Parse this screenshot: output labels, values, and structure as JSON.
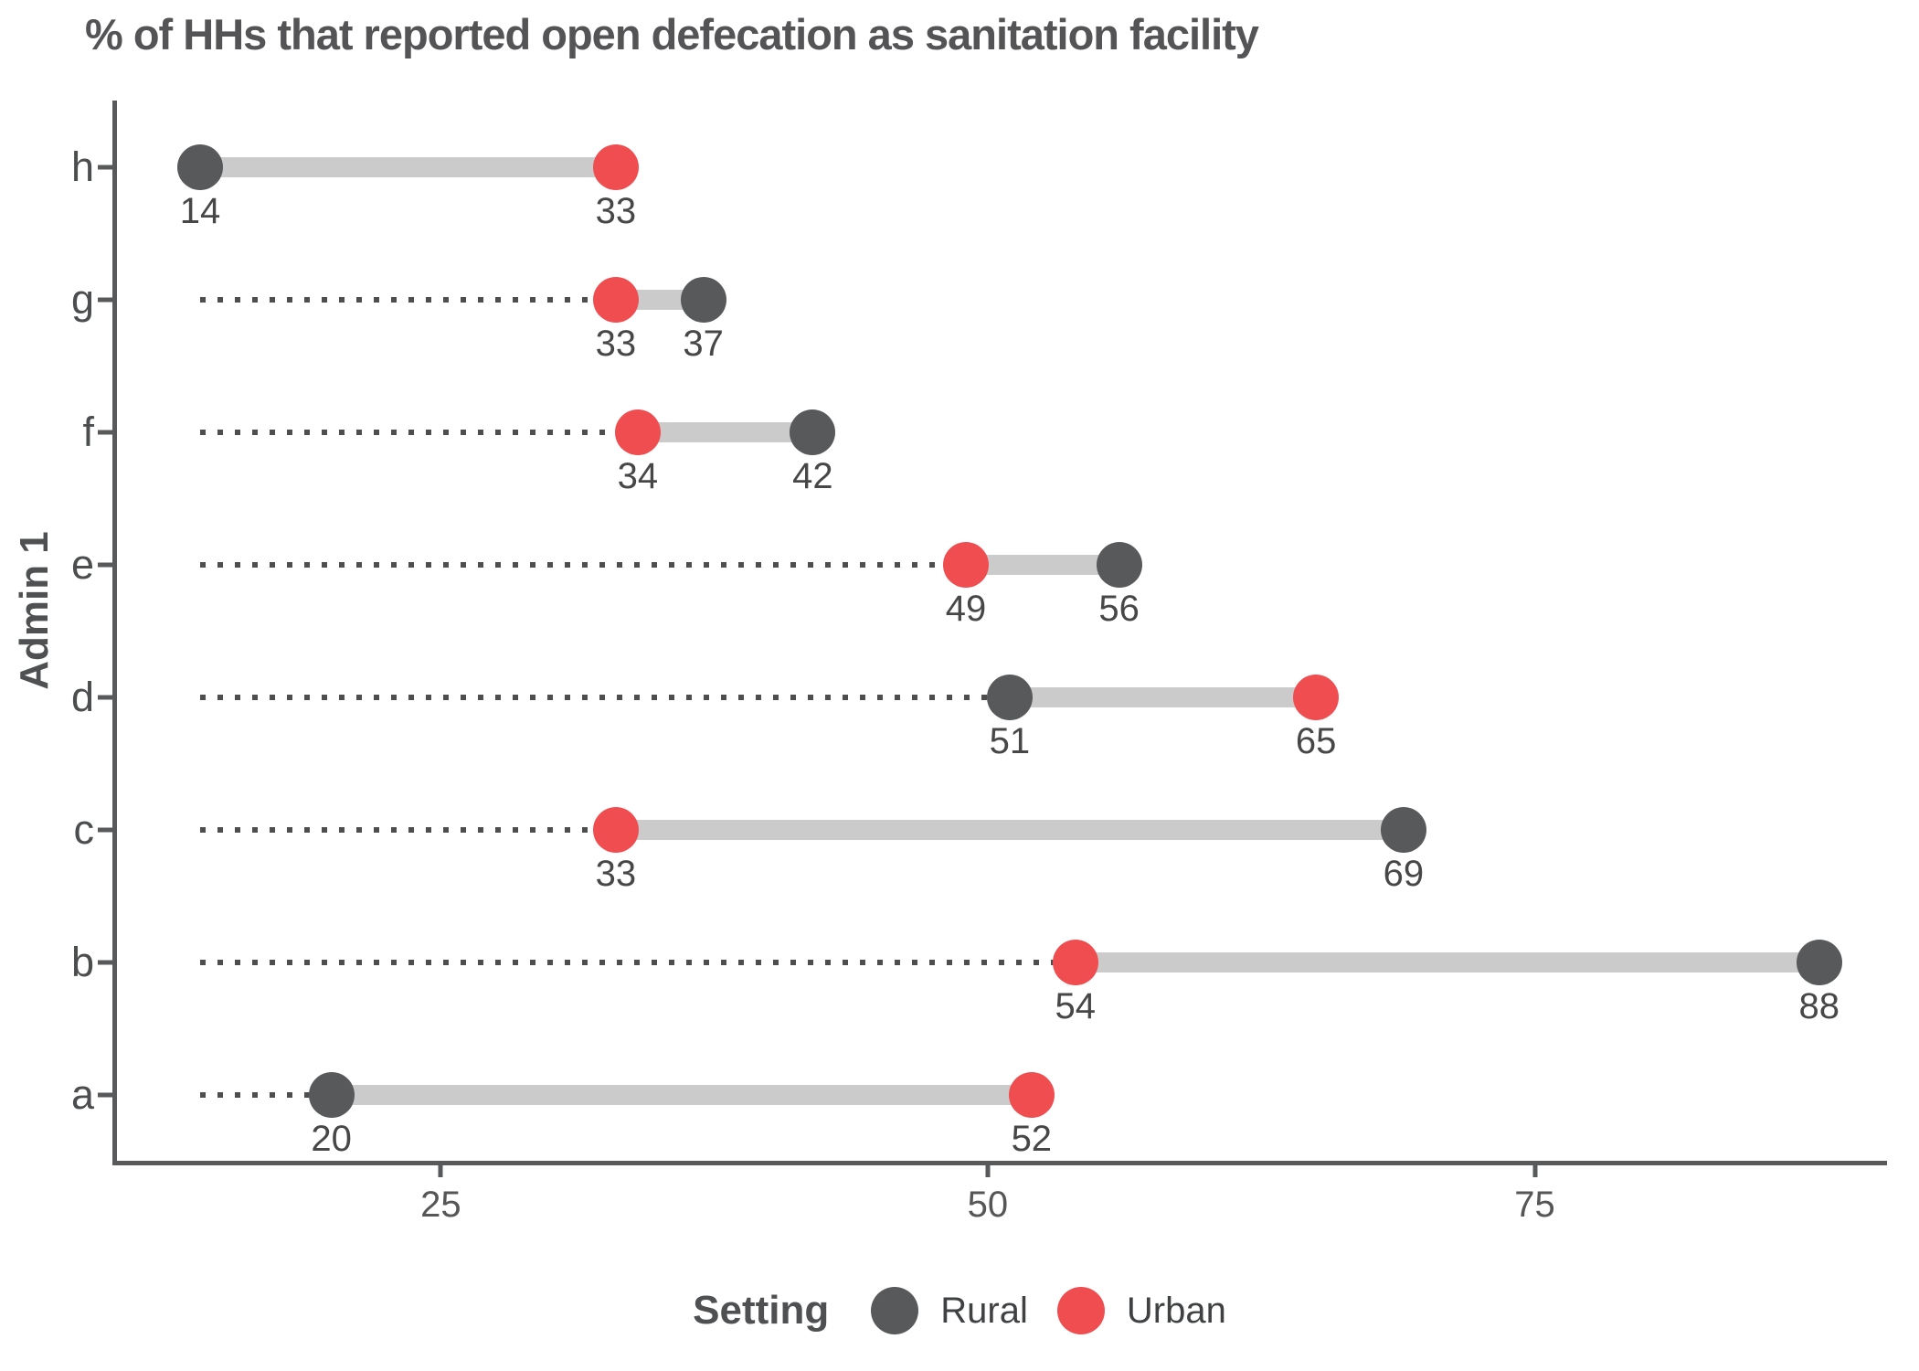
{
  "title": "% of HHs that reported open defecation as sanitation facility",
  "chart_data": {
    "type": "dumbbell",
    "orientation": "horizontal",
    "title": "% of HHs that reported open defecation as sanitation facility",
    "xlabel": "",
    "ylabel": "Admin 1",
    "x_ticks": [
      25,
      50,
      75
    ],
    "axis_range": [
      10.2,
      91.1
    ],
    "leader_start_value": 14,
    "grid": "off",
    "categories": [
      "h",
      "g",
      "f",
      "e",
      "d",
      "c",
      "b",
      "a"
    ],
    "series": [
      {
        "name": "Rural",
        "color": "#58595B",
        "values": [
          14,
          37,
          42,
          56,
          51,
          69,
          88,
          20
        ]
      },
      {
        "name": "Urban",
        "color": "#F04D51",
        "values": [
          33,
          33,
          34,
          49,
          65,
          33,
          54,
          52
        ]
      }
    ],
    "legend": {
      "title": "Setting",
      "position": "bottom",
      "entries": [
        "Rural",
        "Urban"
      ]
    },
    "styles": {
      "connector_color": "#CBCBCB",
      "leader_color": "#4E4E4E",
      "value_label_color": "#474747",
      "axis_color": "#58595B",
      "tick_label_color": "#565656",
      "title_color": "#545456"
    }
  }
}
